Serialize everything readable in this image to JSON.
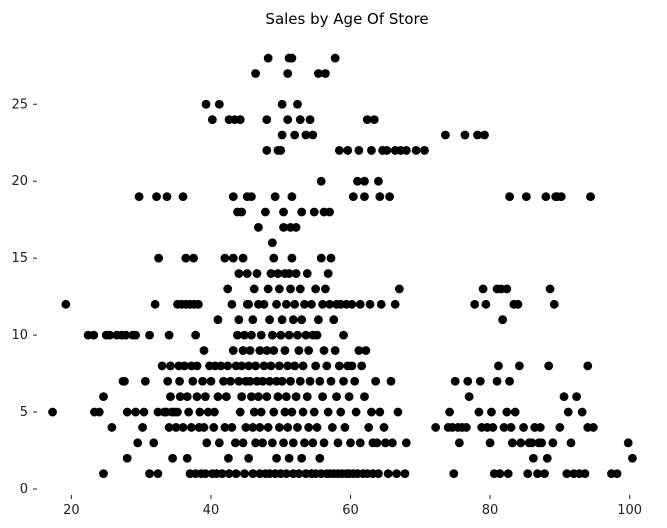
{
  "chart_data": {
    "type": "scatter",
    "title": "Sales by Age Of Store",
    "xlabel": "",
    "ylabel": "",
    "xlim": [
      15.5,
      101.2
    ],
    "ylim": [
      0,
      29.5
    ],
    "xticks": [
      20,
      40,
      60,
      80,
      100
    ],
    "yticks": [
      0,
      5,
      10,
      15,
      20,
      25
    ],
    "grid": false,
    "marker_color": "#000000",
    "points": [
      [
        17.3,
        5
      ],
      [
        19.2,
        12
      ],
      [
        22.4,
        10
      ],
      [
        23.2,
        10
      ],
      [
        23.3,
        5
      ],
      [
        24,
        5
      ],
      [
        24.6,
        6
      ],
      [
        24.6,
        1
      ],
      [
        25,
        10
      ],
      [
        25.5,
        10
      ],
      [
        25.8,
        4
      ],
      [
        26.5,
        10
      ],
      [
        27.2,
        10
      ],
      [
        27.4,
        7
      ],
      [
        27.6,
        7
      ],
      [
        27.8,
        10
      ],
      [
        28,
        5
      ],
      [
        28,
        2
      ],
      [
        28.8,
        10
      ],
      [
        29.2,
        10
      ],
      [
        29.2,
        5
      ],
      [
        29.5,
        3
      ],
      [
        29.7,
        19
      ],
      [
        30.2,
        4
      ],
      [
        30.4,
        5
      ],
      [
        30.6,
        7
      ],
      [
        31.2,
        10
      ],
      [
        31.2,
        1
      ],
      [
        31.8,
        3
      ],
      [
        32,
        12
      ],
      [
        32.2,
        19
      ],
      [
        32.4,
        1
      ],
      [
        32.4,
        5
      ],
      [
        32.5,
        15
      ],
      [
        33,
        8
      ],
      [
        33.3,
        5
      ],
      [
        33.6,
        5
      ],
      [
        33.7,
        19
      ],
      [
        33.8,
        7
      ],
      [
        34,
        10
      ],
      [
        34,
        4
      ],
      [
        34.2,
        8
      ],
      [
        34.2,
        6
      ],
      [
        34.4,
        5
      ],
      [
        34.5,
        2
      ],
      [
        34.8,
        5
      ],
      [
        35,
        4
      ],
      [
        35.2,
        5
      ],
      [
        35.2,
        12
      ],
      [
        35.4,
        8
      ],
      [
        35.5,
        7
      ],
      [
        35.6,
        6
      ],
      [
        35.8,
        12
      ],
      [
        36,
        4
      ],
      [
        36,
        19
      ],
      [
        36.2,
        8
      ],
      [
        36.4,
        15
      ],
      [
        36.4,
        12
      ],
      [
        36.6,
        6
      ],
      [
        36.6,
        2
      ],
      [
        36.8,
        5
      ],
      [
        37,
        12
      ],
      [
        37,
        1
      ],
      [
        37.2,
        8
      ],
      [
        37.2,
        4
      ],
      [
        37.4,
        7
      ],
      [
        37.5,
        15
      ],
      [
        37.6,
        12
      ],
      [
        37.8,
        10
      ],
      [
        37.8,
        1
      ],
      [
        38,
        6
      ],
      [
        38,
        8
      ],
      [
        38.2,
        12
      ],
      [
        38.3,
        4
      ],
      [
        38.4,
        5
      ],
      [
        38.6,
        1
      ],
      [
        38.8,
        7
      ],
      [
        39,
        9
      ],
      [
        39,
        4
      ],
      [
        39.2,
        6
      ],
      [
        39.2,
        1
      ],
      [
        39.3,
        25
      ],
      [
        39.4,
        3
      ],
      [
        39.6,
        5
      ],
      [
        39.8,
        8
      ],
      [
        40,
        7
      ],
      [
        40.2,
        1
      ],
      [
        40.2,
        24
      ],
      [
        40.4,
        4
      ],
      [
        40.5,
        5
      ],
      [
        40.6,
        8
      ],
      [
        40.8,
        1
      ],
      [
        41,
        6
      ],
      [
        41,
        11
      ],
      [
        41.2,
        25
      ],
      [
        41.2,
        3
      ],
      [
        41.4,
        8
      ],
      [
        41.6,
        1
      ],
      [
        41.8,
        7
      ],
      [
        42,
        4
      ],
      [
        42,
        15
      ],
      [
        42.2,
        6
      ],
      [
        42.4,
        13
      ],
      [
        42.4,
        8
      ],
      [
        42.5,
        2
      ],
      [
        42.6,
        1
      ],
      [
        42.6,
        24
      ],
      [
        42.8,
        7
      ],
      [
        43,
        4
      ],
      [
        43,
        12
      ],
      [
        43.2,
        15
      ],
      [
        43.2,
        9
      ],
      [
        43.2,
        19
      ],
      [
        43.4,
        24
      ],
      [
        43.5,
        3
      ],
      [
        43.6,
        8
      ],
      [
        43.6,
        1
      ],
      [
        43.8,
        18
      ],
      [
        43.8,
        10
      ],
      [
        44,
        7
      ],
      [
        44,
        14
      ],
      [
        44,
        11
      ],
      [
        44.2,
        24
      ],
      [
        44.2,
        5
      ],
      [
        44.4,
        6
      ],
      [
        44.4,
        18
      ],
      [
        44.4,
        8
      ],
      [
        44.6,
        9
      ],
      [
        44.6,
        3
      ],
      [
        44.6,
        15
      ],
      [
        44.8,
        10
      ],
      [
        44.8,
        1
      ],
      [
        45,
        7
      ],
      [
        45,
        4
      ],
      [
        45.2,
        14
      ],
      [
        45.2,
        12
      ],
      [
        45.2,
        19
      ],
      [
        45.4,
        8
      ],
      [
        45.4,
        2
      ],
      [
        45.4,
        12
      ],
      [
        45.6,
        7
      ],
      [
        45.6,
        9
      ],
      [
        45.8,
        19
      ],
      [
        45.8,
        10
      ],
      [
        45.8,
        6
      ],
      [
        46,
        4
      ],
      [
        46,
        11
      ],
      [
        46,
        1
      ],
      [
        46.2,
        5
      ],
      [
        46.2,
        13
      ],
      [
        46.4,
        27
      ],
      [
        46.4,
        3
      ],
      [
        46.4,
        8
      ],
      [
        46.6,
        14
      ],
      [
        46.6,
        7
      ],
      [
        46.8,
        17
      ],
      [
        46.8,
        12
      ],
      [
        46.8,
        6
      ],
      [
        47,
        9
      ],
      [
        47,
        4
      ],
      [
        47,
        1
      ],
      [
        47.2,
        10
      ],
      [
        47.2,
        5
      ],
      [
        47.4,
        7
      ],
      [
        47.4,
        3
      ],
      [
        47.6,
        8
      ],
      [
        47.6,
        12
      ],
      [
        47.8,
        18
      ],
      [
        47.8,
        1
      ],
      [
        48,
        22
      ],
      [
        48,
        9
      ],
      [
        48,
        24
      ],
      [
        48,
        6
      ],
      [
        48.2,
        28
      ],
      [
        48.2,
        13
      ],
      [
        48.2,
        4
      ],
      [
        48.4,
        11
      ],
      [
        48.4,
        7
      ],
      [
        48.4,
        1
      ],
      [
        48.6,
        14
      ],
      [
        48.6,
        8
      ],
      [
        48.8,
        3
      ],
      [
        48.8,
        10
      ],
      [
        48.8,
        16
      ],
      [
        49,
        15
      ],
      [
        49,
        9
      ],
      [
        49,
        5
      ],
      [
        49.2,
        19
      ],
      [
        49.2,
        1
      ],
      [
        49.4,
        12
      ],
      [
        49.4,
        7
      ],
      [
        49.4,
        2
      ],
      [
        49.6,
        14
      ],
      [
        49.6,
        22
      ],
      [
        49.6,
        6
      ],
      [
        49.8,
        4
      ],
      [
        49.8,
        13
      ],
      [
        49.8,
        8
      ],
      [
        50,
        22
      ],
      [
        50,
        10
      ],
      [
        50,
        1
      ],
      [
        50.2,
        25
      ],
      [
        50.2,
        23
      ],
      [
        50.2,
        11
      ],
      [
        50.2,
        7
      ],
      [
        50.4,
        18
      ],
      [
        50.4,
        3
      ],
      [
        50.4,
        17
      ],
      [
        50.6,
        14
      ],
      [
        50.6,
        9
      ],
      [
        50.6,
        5
      ],
      [
        50.8,
        12
      ],
      [
        50.8,
        6
      ],
      [
        50.8,
        1
      ],
      [
        51,
        27
      ],
      [
        51,
        24
      ],
      [
        51,
        8
      ],
      [
        51,
        4
      ],
      [
        51.2,
        28
      ],
      [
        51.2,
        14
      ],
      [
        51.2,
        10
      ],
      [
        51.2,
        2
      ],
      [
        51.4,
        17
      ],
      [
        51.4,
        7
      ],
      [
        51.4,
        13
      ],
      [
        51.6,
        28
      ],
      [
        51.6,
        19
      ],
      [
        51.6,
        15
      ],
      [
        51.6,
        5
      ],
      [
        51.8,
        11
      ],
      [
        51.8,
        3
      ],
      [
        51.8,
        1
      ],
      [
        52,
        23
      ],
      [
        52,
        8
      ],
      [
        52,
        12
      ],
      [
        52.2,
        17
      ],
      [
        52.2,
        6
      ],
      [
        52.2,
        14
      ],
      [
        52.4,
        25
      ],
      [
        52.4,
        10
      ],
      [
        52.4,
        4
      ],
      [
        52.6,
        9
      ],
      [
        52.6,
        1
      ],
      [
        52.8,
        13
      ],
      [
        52.8,
        7
      ],
      [
        52.8,
        24
      ],
      [
        53,
        18
      ],
      [
        53,
        2
      ],
      [
        53,
        11
      ],
      [
        53.2,
        5
      ],
      [
        53.2,
        8
      ],
      [
        53.4,
        12
      ],
      [
        53.4,
        3
      ],
      [
        53.6,
        23
      ],
      [
        53.6,
        10
      ],
      [
        53.6,
        1
      ],
      [
        53.8,
        6
      ],
      [
        53.8,
        14
      ],
      [
        54,
        9
      ],
      [
        54,
        4
      ],
      [
        54.2,
        24
      ],
      [
        54.2,
        7
      ],
      [
        54.4,
        12
      ],
      [
        54.4,
        1
      ],
      [
        54.6,
        23
      ],
      [
        54.6,
        10
      ],
      [
        54.6,
        3
      ],
      [
        54.8,
        18
      ],
      [
        54.8,
        5
      ],
      [
        55,
        13
      ],
      [
        55,
        8
      ],
      [
        55,
        1
      ],
      [
        55.2,
        10
      ],
      [
        55.2,
        4
      ],
      [
        55.4,
        27
      ],
      [
        55.4,
        11
      ],
      [
        55.6,
        7
      ],
      [
        55.6,
        2
      ],
      [
        55.8,
        20
      ],
      [
        55.8,
        15
      ],
      [
        55.8,
        1
      ],
      [
        56,
        12
      ],
      [
        56,
        6
      ],
      [
        56.2,
        18
      ],
      [
        56.2,
        9
      ],
      [
        56.2,
        3
      ],
      [
        56.4,
        27
      ],
      [
        56.4,
        13
      ],
      [
        56.6,
        8
      ],
      [
        56.6,
        1
      ],
      [
        56.8,
        14
      ],
      [
        56.8,
        5
      ],
      [
        57,
        18
      ],
      [
        57,
        12
      ],
      [
        57,
        1
      ],
      [
        57.2,
        15
      ],
      [
        57.2,
        7
      ],
      [
        57.4,
        4
      ],
      [
        57.6,
        11
      ],
      [
        57.6,
        1
      ],
      [
        57.8,
        28
      ],
      [
        57.8,
        9
      ],
      [
        58,
        12
      ],
      [
        58,
        6
      ],
      [
        58.2,
        3
      ],
      [
        58.2,
        1
      ],
      [
        58.4,
        22
      ],
      [
        58.4,
        8
      ],
      [
        58.6,
        5
      ],
      [
        58.6,
        12
      ],
      [
        58.8,
        1
      ],
      [
        59,
        10
      ],
      [
        59,
        7
      ],
      [
        59.2,
        4
      ],
      [
        59.4,
        12
      ],
      [
        59.4,
        1
      ],
      [
        59.6,
        22
      ],
      [
        59.6,
        8
      ],
      [
        59.8,
        6
      ],
      [
        59.8,
        1
      ],
      [
        60,
        3
      ],
      [
        60.2,
        12
      ],
      [
        60.2,
        8
      ],
      [
        60.4,
        19
      ],
      [
        60.4,
        1
      ],
      [
        60.6,
        7
      ],
      [
        60.8,
        5
      ],
      [
        61,
        20
      ],
      [
        61,
        1
      ],
      [
        61.2,
        22
      ],
      [
        61.2,
        9
      ],
      [
        61.4,
        12
      ],
      [
        61.4,
        3
      ],
      [
        61.6,
        8
      ],
      [
        61.8,
        1
      ],
      [
        62,
        19
      ],
      [
        62,
        20
      ],
      [
        62,
        6
      ],
      [
        62.2,
        9
      ],
      [
        62.4,
        24
      ],
      [
        62.4,
        1
      ],
      [
        62.6,
        4
      ],
      [
        62.8,
        12
      ],
      [
        63,
        22
      ],
      [
        63,
        5
      ],
      [
        63.2,
        3
      ],
      [
        63.2,
        1
      ],
      [
        63.4,
        24
      ],
      [
        63.6,
        7
      ],
      [
        63.8,
        3
      ],
      [
        64,
        20
      ],
      [
        64,
        1
      ],
      [
        64.2,
        19
      ],
      [
        64.2,
        5
      ],
      [
        64.4,
        12
      ],
      [
        64.6,
        22
      ],
      [
        64.8,
        4
      ],
      [
        65,
        3
      ],
      [
        65.2,
        22
      ],
      [
        65.4,
        1
      ],
      [
        65.6,
        19
      ],
      [
        65.8,
        7
      ],
      [
        66,
        3
      ],
      [
        66.4,
        22
      ],
      [
        66.4,
        12
      ],
      [
        66.6,
        1
      ],
      [
        66.8,
        5
      ],
      [
        67,
        13
      ],
      [
        67.2,
        22
      ],
      [
        67.8,
        1
      ],
      [
        68,
        22
      ],
      [
        68,
        3
      ],
      [
        69.4,
        22
      ],
      [
        70.6,
        22
      ],
      [
        72.2,
        4
      ],
      [
        73.6,
        23
      ],
      [
        74,
        4
      ],
      [
        74.2,
        5
      ],
      [
        74.6,
        4
      ],
      [
        74.8,
        1
      ],
      [
        75,
        7
      ],
      [
        75.4,
        4
      ],
      [
        75.6,
        3
      ],
      [
        76,
        4
      ],
      [
        76.4,
        23
      ],
      [
        76.6,
        4
      ],
      [
        76.8,
        7
      ],
      [
        77,
        6
      ],
      [
        77.8,
        12
      ],
      [
        78.2,
        23
      ],
      [
        78.4,
        5
      ],
      [
        78.6,
        7
      ],
      [
        78.8,
        4
      ],
      [
        79,
        13
      ],
      [
        79.2,
        23
      ],
      [
        79.4,
        12
      ],
      [
        79.6,
        4
      ],
      [
        80,
        3
      ],
      [
        80.2,
        5
      ],
      [
        80.4,
        4
      ],
      [
        80.6,
        1
      ],
      [
        81,
        7
      ],
      [
        81,
        13
      ],
      [
        81.2,
        8
      ],
      [
        81.4,
        1
      ],
      [
        81.6,
        13
      ],
      [
        81.8,
        11
      ],
      [
        82,
        4
      ],
      [
        82.4,
        13
      ],
      [
        82.4,
        5
      ],
      [
        82.6,
        1
      ],
      [
        82.8,
        19
      ],
      [
        82.8,
        7
      ],
      [
        83,
        4
      ],
      [
        83.2,
        3
      ],
      [
        83.4,
        12
      ],
      [
        83.6,
        5
      ],
      [
        84,
        12
      ],
      [
        84.2,
        8
      ],
      [
        84.4,
        3
      ],
      [
        84.8,
        4
      ],
      [
        85.2,
        19
      ],
      [
        85.4,
        1
      ],
      [
        85.6,
        3
      ],
      [
        86,
        3
      ],
      [
        86.2,
        2
      ],
      [
        86.4,
        4
      ],
      [
        86.8,
        1
      ],
      [
        87,
        3
      ],
      [
        87.2,
        4
      ],
      [
        87.4,
        3
      ],
      [
        87.8,
        1
      ],
      [
        88,
        19
      ],
      [
        88.2,
        2
      ],
      [
        88.4,
        8
      ],
      [
        88.6,
        13
      ],
      [
        89,
        3
      ],
      [
        89.2,
        12
      ],
      [
        89.4,
        19
      ],
      [
        89.6,
        19
      ],
      [
        90,
        4
      ],
      [
        90.2,
        19
      ],
      [
        90.6,
        6
      ],
      [
        91,
        1
      ],
      [
        91.2,
        5
      ],
      [
        91.6,
        3
      ],
      [
        92,
        1
      ],
      [
        92.4,
        6
      ],
      [
        92.8,
        1
      ],
      [
        93.2,
        5
      ],
      [
        93.6,
        1
      ],
      [
        94,
        8
      ],
      [
        94,
        4
      ],
      [
        94.4,
        19
      ],
      [
        94.8,
        4
      ],
      [
        97.4,
        1
      ],
      [
        98.2,
        1
      ],
      [
        99.8,
        3
      ],
      [
        100.4,
        2
      ]
    ]
  }
}
